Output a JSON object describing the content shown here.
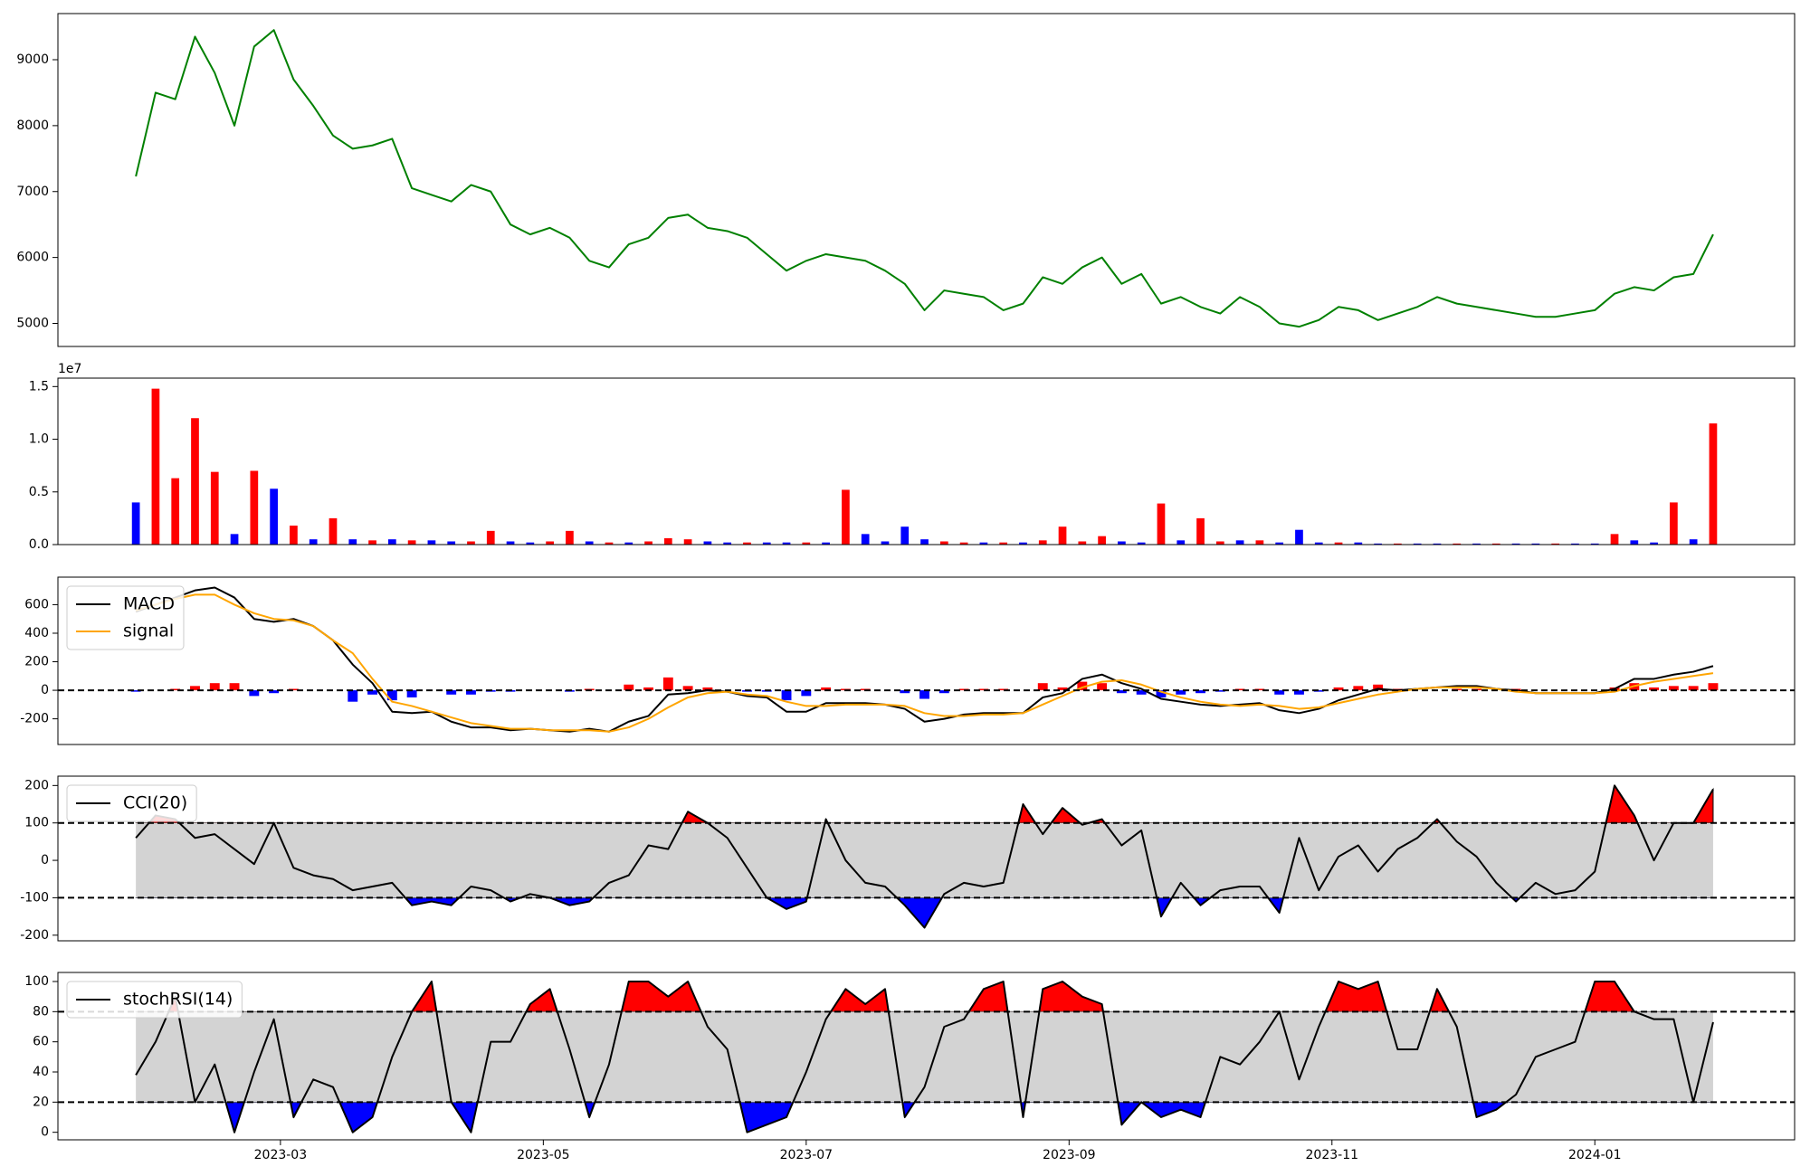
{
  "chart_data": [
    {
      "type": "line",
      "series": [
        {
          "color": "#008000",
          "values": [
            7230,
            8500,
            8400,
            9350,
            8800,
            8000,
            9200,
            9450,
            8700,
            8300,
            7850,
            7650,
            7700,
            7800,
            7050,
            6950,
            6850,
            7100,
            7000,
            6500,
            6350,
            6450,
            6300,
            5950,
            5850,
            6200,
            6300,
            6600,
            6650,
            6450,
            6400,
            6300,
            6050,
            5800,
            5950,
            6050,
            6000,
            5950,
            5800,
            5600,
            5200,
            5500,
            5450,
            5400,
            5200,
            5300,
            5700,
            5600,
            5850,
            6000,
            5600,
            5750,
            5300,
            5400,
            5250,
            5150,
            5400,
            5250,
            5000,
            4950,
            5050,
            5250,
            5200,
            5050,
            5150,
            5250,
            5400,
            5300,
            5250,
            5200,
            5150,
            5100,
            5100,
            5150,
            5200,
            5450,
            5550,
            5500,
            5700,
            5750,
            6350
          ]
        }
      ],
      "ylim": [
        4650,
        9700
      ],
      "yticks": [
        5000,
        6000,
        7000,
        8000,
        9000
      ]
    },
    {
      "type": "bar",
      "offset_label": "1e7",
      "values": [
        0.4,
        1.48,
        0.63,
        1.2,
        0.69,
        0.1,
        0.7,
        0.53,
        0.18,
        0.05,
        0.25,
        0.05,
        0.04,
        0.05,
        0.04,
        0.04,
        0.03,
        0.03,
        0.13,
        0.03,
        0.02,
        0.03,
        0.13,
        0.03,
        0.02,
        0.02,
        0.03,
        0.06,
        0.05,
        0.03,
        0.02,
        0.02,
        0.02,
        0.02,
        0.02,
        0.02,
        0.52,
        0.1,
        0.03,
        0.17,
        0.05,
        0.03,
        0.02,
        0.02,
        0.02,
        0.02,
        0.04,
        0.17,
        0.03,
        0.08,
        0.03,
        0.02,
        0.39,
        0.04,
        0.25,
        0.03,
        0.04,
        0.04,
        0.02,
        0.14,
        0.02,
        0.02,
        0.02,
        0.01,
        0.01,
        0.01,
        0.01,
        0.01,
        0.01,
        0.01,
        0.01,
        0.01,
        0.01,
        0.01,
        0.01,
        0.1,
        0.04,
        0.02,
        0.4,
        0.05,
        1.15
      ],
      "colors": [
        "#0000ff",
        "#ff0000",
        "#ff0000",
        "#ff0000",
        "#ff0000",
        "#0000ff",
        "#ff0000",
        "#0000ff",
        "#ff0000",
        "#0000ff",
        "#ff0000",
        "#0000ff",
        "#ff0000",
        "#0000ff",
        "#ff0000",
        "#0000ff",
        "#0000ff",
        "#ff0000",
        "#ff0000",
        "#0000ff",
        "#0000ff",
        "#ff0000",
        "#ff0000",
        "#0000ff",
        "#ff0000",
        "#0000ff",
        "#ff0000",
        "#ff0000",
        "#ff0000",
        "#0000ff",
        "#0000ff",
        "#ff0000",
        "#0000ff",
        "#0000ff",
        "#ff0000",
        "#0000ff",
        "#ff0000",
        "#0000ff",
        "#0000ff",
        "#0000ff",
        "#0000ff",
        "#ff0000",
        "#ff0000",
        "#0000ff",
        "#ff0000",
        "#0000ff",
        "#ff0000",
        "#ff0000",
        "#ff0000",
        "#ff0000",
        "#0000ff",
        "#0000ff",
        "#ff0000",
        "#0000ff",
        "#ff0000",
        "#ff0000",
        "#0000ff",
        "#ff0000",
        "#0000ff",
        "#0000ff",
        "#0000ff",
        "#ff0000",
        "#0000ff",
        "#0000ff",
        "#ff0000",
        "#0000ff",
        "#0000ff",
        "#ff0000",
        "#0000ff",
        "#ff0000",
        "#0000ff",
        "#0000ff",
        "#ff0000",
        "#0000ff",
        "#0000ff",
        "#ff0000",
        "#0000ff",
        "#0000ff",
        "#ff0000",
        "#0000ff",
        "#ff0000"
      ],
      "ylim": [
        0,
        1.58
      ],
      "yticks": [
        {
          "value": 0,
          "label": "0.0"
        },
        0.5,
        {
          "value": 1,
          "label": "1.0"
        },
        1.5
      ]
    },
    {
      "type": "line",
      "series": [
        {
          "name": "MACD",
          "color": "#000000",
          "values": [
            550,
            600,
            650,
            700,
            720,
            650,
            500,
            480,
            500,
            450,
            350,
            180,
            50,
            -150,
            -160,
            -150,
            -220,
            -260,
            -260,
            -280,
            -270,
            -280,
            -290,
            -270,
            -290,
            -220,
            -180,
            -30,
            -20,
            0,
            -10,
            -40,
            -50,
            -150,
            -150,
            -90,
            -90,
            -90,
            -100,
            -130,
            -220,
            -200,
            -170,
            -160,
            -160,
            -160,
            -50,
            -20,
            80,
            110,
            50,
            10,
            -60,
            -80,
            -100,
            -110,
            -100,
            -90,
            -140,
            -160,
            -130,
            -70,
            -30,
            10,
            0,
            10,
            20,
            30,
            30,
            10,
            0,
            -20,
            -20,
            -20,
            -20,
            10,
            80,
            80,
            110,
            130,
            170
          ]
        },
        {
          "name": "signal",
          "color": "#ffa500",
          "values": [
            560,
            600,
            640,
            670,
            670,
            600,
            540,
            500,
            490,
            450,
            350,
            260,
            80,
            -80,
            -110,
            -150,
            -190,
            -230,
            -250,
            -270,
            -270,
            -280,
            -280,
            -280,
            -290,
            -260,
            -200,
            -120,
            -50,
            -20,
            -10,
            -30,
            -40,
            -80,
            -110,
            -110,
            -100,
            -100,
            -100,
            -110,
            -160,
            -180,
            -180,
            -170,
            -170,
            -160,
            -100,
            -40,
            20,
            60,
            70,
            40,
            -10,
            -50,
            -80,
            -100,
            -110,
            -100,
            -110,
            -130,
            -120,
            -90,
            -60,
            -30,
            -10,
            10,
            20,
            20,
            20,
            10,
            -10,
            -20,
            -20,
            -20,
            -20,
            -10,
            30,
            60,
            80,
            100,
            120
          ]
        }
      ],
      "histogram": {
        "values": [
          -10,
          0,
          10,
          30,
          50,
          50,
          -40,
          -20,
          10,
          0,
          0,
          -80,
          -30,
          -70,
          -50,
          0,
          -30,
          -30,
          -10,
          -10,
          0,
          0,
          -10,
          10,
          0,
          40,
          20,
          90,
          30,
          20,
          0,
          -10,
          -10,
          -70,
          -40,
          20,
          10,
          10,
          0,
          -20,
          -60,
          -20,
          10,
          10,
          10,
          0,
          50,
          20,
          60,
          50,
          -20,
          -30,
          -50,
          -30,
          -20,
          -10,
          10,
          10,
          -30,
          -30,
          -10,
          20,
          30,
          40,
          10,
          0,
          0,
          10,
          10,
          0,
          10,
          0,
          0,
          0,
          0,
          20,
          50,
          20,
          30,
          30,
          50
        ],
        "pos_color": "#ff0000",
        "neg_color": "#0000ff"
      },
      "reference_lines": [
        0
      ],
      "ylim": [
        -380,
        793
      ],
      "yticks": [
        -200,
        0,
        200,
        400,
        600
      ],
      "legend": "upper left"
    },
    {
      "type": "line",
      "series": [
        {
          "name": "CCI(20)",
          "color": "#000000",
          "values": [
            60,
            120,
            110,
            60,
            70,
            30,
            -10,
            100,
            -20,
            -40,
            -50,
            -80,
            -70,
            -60,
            -120,
            -110,
            -120,
            -70,
            -80,
            -110,
            -90,
            -100,
            -120,
            -110,
            -60,
            -40,
            40,
            30,
            130,
            100,
            60,
            -20,
            -100,
            -130,
            -110,
            110,
            0,
            -60,
            -70,
            -120,
            -180,
            -90,
            -60,
            -70,
            -60,
            150,
            70,
            140,
            95,
            110,
            40,
            80,
            -150,
            -60,
            -120,
            -80,
            -70,
            -70,
            -140,
            60,
            -80,
            10,
            40,
            -30,
            30,
            60,
            110,
            50,
            10,
            -60,
            -110,
            -60,
            -90,
            -80,
            -30,
            200,
            120,
            0,
            100,
            100,
            190
          ]
        }
      ],
      "reference_lines": [
        100,
        -100
      ],
      "band_color": "#d3d3d3",
      "above_color": "#ff0000",
      "below_color": "#0000ff",
      "ylim": [
        -215,
        225
      ],
      "yticks": [
        -200,
        -100,
        0,
        100,
        200
      ],
      "legend": "upper left"
    },
    {
      "type": "line",
      "series": [
        {
          "name": "stochRSI(14)",
          "color": "#000000",
          "values": [
            38,
            60,
            90,
            20,
            45,
            0,
            40,
            75,
            10,
            35,
            30,
            0,
            10,
            50,
            80,
            100,
            20,
            0,
            60,
            60,
            85,
            95,
            55,
            10,
            45,
            100,
            100,
            90,
            100,
            70,
            55,
            0,
            5,
            10,
            40,
            75,
            95,
            85,
            95,
            10,
            30,
            70,
            75,
            95,
            100,
            10,
            95,
            100,
            90,
            85,
            5,
            20,
            10,
            15,
            10,
            50,
            45,
            60,
            80,
            35,
            70,
            100,
            95,
            100,
            55,
            55,
            95,
            70,
            10,
            15,
            25,
            50,
            55,
            60,
            100,
            100,
            80,
            75,
            75,
            20,
            73
          ]
        }
      ],
      "reference_lines": [
        80,
        20
      ],
      "band_color": "#d3d3d3",
      "above_color": "#ff0000",
      "below_color": "#0000ff",
      "ylim": [
        -5,
        106
      ],
      "yticks": [
        0,
        20,
        40,
        60,
        80,
        100
      ],
      "legend": "upper left",
      "x": [
        0.9,
        1.05,
        1.2,
        1.35,
        1.5,
        1.65,
        1.8,
        1.95,
        2.1,
        2.25,
        2.4,
        2.55,
        2.7,
        2.85,
        3,
        3.15,
        3.3,
        3.45,
        3.6,
        3.75,
        3.9,
        4.05,
        4.2,
        4.35,
        4.5,
        4.65,
        4.8,
        4.95,
        5.1,
        5.25,
        5.4,
        5.55,
        5.7,
        5.85,
        6,
        6.15,
        6.3,
        6.45,
        6.6,
        6.75,
        6.9,
        7.05,
        7.2,
        7.35,
        7.5,
        7.65,
        7.8,
        7.95,
        8.1,
        8.25,
        8.4,
        8.55,
        8.7,
        8.85,
        9,
        9.15,
        9.3,
        9.45,
        9.6,
        9.75,
        9.9,
        10.05,
        10.2,
        10.35,
        10.5,
        10.65,
        10.8,
        10.95,
        11.1,
        11.25,
        11.4,
        11.55,
        11.7,
        11.85,
        12,
        12.15,
        12.3,
        12.45,
        12.6,
        12.75,
        12.9
      ],
      "xlim": [
        0.307,
        13.52
      ],
      "xticks": [
        {
          "value": 2,
          "label": "2023-03"
        },
        {
          "value": 4,
          "label": "2023-05"
        },
        {
          "value": 6,
          "label": "2023-07"
        },
        {
          "value": 8,
          "label": "2023-09"
        },
        {
          "value": 10,
          "label": "2023-11"
        },
        {
          "value": 12,
          "label": "2024-01"
        }
      ]
    }
  ]
}
